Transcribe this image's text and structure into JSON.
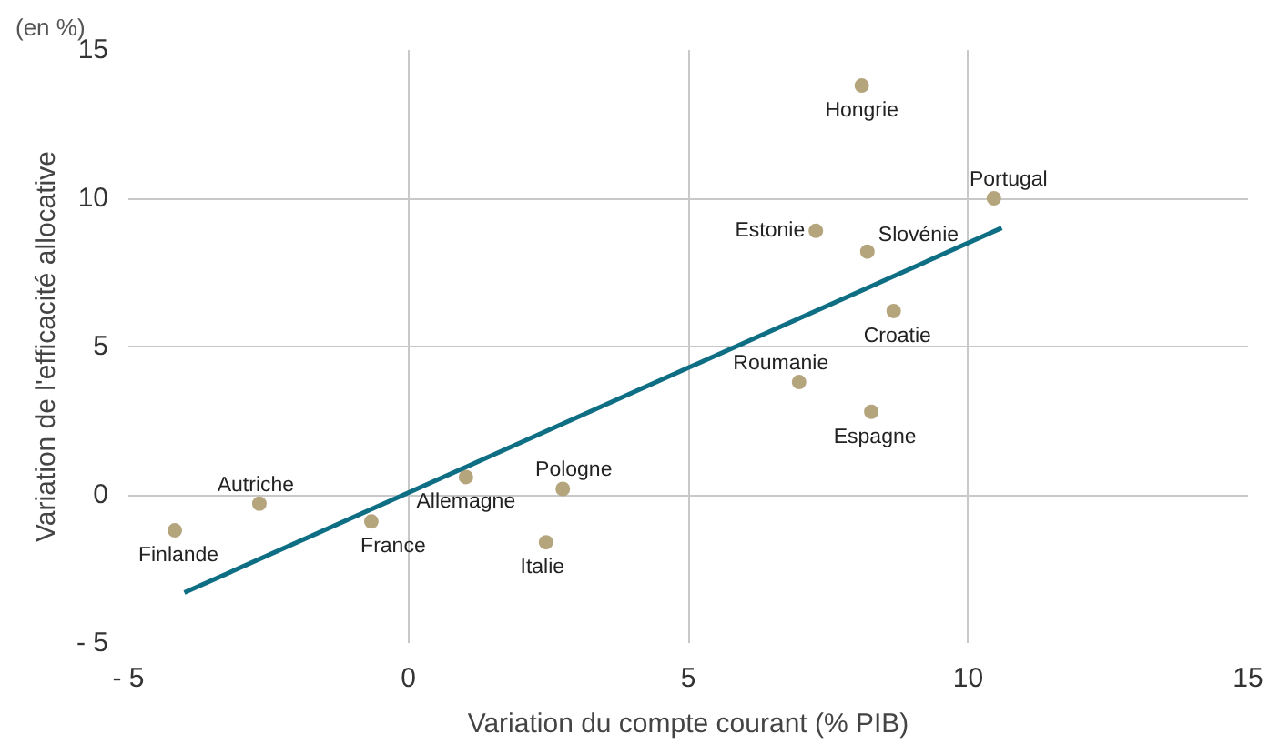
{
  "chart_data": {
    "type": "scatter",
    "xlabel": "Variation du compte courant (% PIB)",
    "ylabel": "Variation de l'efficacité allocative",
    "x": [
      -4.17,
      -2.66,
      -0.66,
      1.03,
      2.76,
      2.46,
      8.1,
      10.46,
      7.28,
      8.2,
      8.67,
      6.98,
      8.27
    ],
    "series": [
      {
        "color": "#b5a57d",
        "values": [
          -1.2,
          -0.3,
          -0.9,
          0.6,
          0.2,
          -1.6,
          13.8,
          10.0,
          8.9,
          8.2,
          6.2,
          3.8,
          2.8
        ]
      },
      {
        "type": "line",
        "marker": "none",
        "color": "#0e6e84",
        "x": [
          -4.0,
          10.6
        ],
        "values": [
          -3.3,
          9.0
        ]
      }
    ],
    "annotations": [
      "(en %)",
      {
        "text": "Finlande",
        "x": -4.17,
        "y": -1.2
      },
      {
        "text": "Autriche",
        "x": -2.66,
        "y": -0.3
      },
      {
        "text": "France",
        "x": -0.66,
        "y": -0.9
      },
      {
        "text": "Allemagne",
        "x": 1.03,
        "y": 0.6
      },
      {
        "text": "Pologne",
        "x": 2.76,
        "y": 0.2
      },
      {
        "text": "Italie",
        "x": 2.46,
        "y": -1.6
      },
      {
        "text": "Hongrie",
        "x": 8.1,
        "y": 13.8
      },
      {
        "text": "Portugal",
        "x": 10.46,
        "y": 10.0
      },
      {
        "text": "Estonie",
        "x": 7.28,
        "y": 8.9
      },
      {
        "text": "Slovénie",
        "x": 8.2,
        "y": 8.2
      },
      {
        "text": "Croatie",
        "x": 8.67,
        "y": 6.2
      },
      {
        "text": "Roumanie",
        "x": 6.98,
        "y": 3.8
      },
      {
        "text": "Espagne",
        "x": 8.27,
        "y": 2.8
      }
    ],
    "xlim": [
      -5,
      15
    ],
    "ylim": [
      -5,
      15
    ],
    "xticks": [
      {
        "value": -5,
        "label": "- 5"
      },
      0,
      5,
      10,
      15
    ],
    "yticks": [
      {
        "value": -5,
        "label": "- 5"
      },
      0,
      5,
      10,
      15
    ],
    "grid": true,
    "marker": "circle"
  }
}
